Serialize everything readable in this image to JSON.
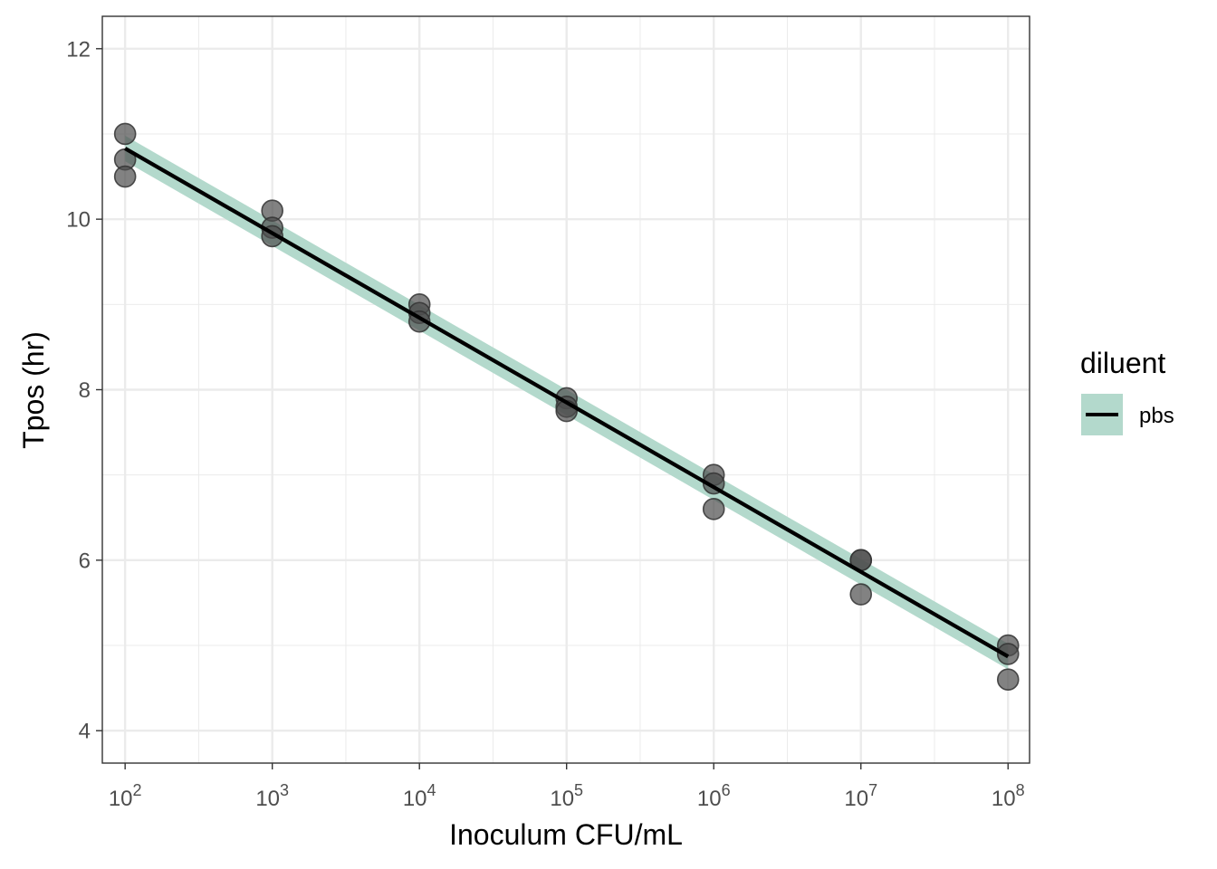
{
  "chart_data": {
    "type": "scatter",
    "xlabel": "Inoculum CFU/mL",
    "ylabel": "Tpos (hr)",
    "x_scale": "log10",
    "xlim": [
      70,
      140000000
    ],
    "ylim": [
      3.62,
      12.38
    ],
    "x_ticks": [
      {
        "value": 100,
        "base": "10",
        "exp": "2"
      },
      {
        "value": 1000,
        "base": "10",
        "exp": "3"
      },
      {
        "value": 10000,
        "base": "10",
        "exp": "4"
      },
      {
        "value": 100000,
        "base": "10",
        "exp": "5"
      },
      {
        "value": 1000000,
        "base": "10",
        "exp": "6"
      },
      {
        "value": 10000000,
        "base": "10",
        "exp": "7"
      },
      {
        "value": 100000000,
        "base": "10",
        "exp": "8"
      }
    ],
    "y_ticks": [
      {
        "value": 4,
        "label": "4"
      },
      {
        "value": 6,
        "label": "6"
      },
      {
        "value": 8,
        "label": "8"
      },
      {
        "value": 10,
        "label": "10"
      },
      {
        "value": 12,
        "label": "12"
      }
    ],
    "grid": true,
    "legend_position": "right",
    "legend_title": "diluent",
    "series": [
      {
        "name": "pbs",
        "points": [
          {
            "x": 100,
            "y": 11.0
          },
          {
            "x": 100,
            "y": 10.7
          },
          {
            "x": 100,
            "y": 10.5
          },
          {
            "x": 1000,
            "y": 10.1
          },
          {
            "x": 1000,
            "y": 9.9
          },
          {
            "x": 1000,
            "y": 9.8
          },
          {
            "x": 10000,
            "y": 9.0
          },
          {
            "x": 10000,
            "y": 8.9
          },
          {
            "x": 10000,
            "y": 8.8
          },
          {
            "x": 100000,
            "y": 7.9
          },
          {
            "x": 100000,
            "y": 7.8
          },
          {
            "x": 100000,
            "y": 7.75
          },
          {
            "x": 1000000,
            "y": 7.0
          },
          {
            "x": 1000000,
            "y": 6.9
          },
          {
            "x": 1000000,
            "y": 6.6
          },
          {
            "x": 10000000,
            "y": 6.0
          },
          {
            "x": 10000000,
            "y": 6.0
          },
          {
            "x": 10000000,
            "y": 5.6
          },
          {
            "x": 100000000,
            "y": 5.0
          },
          {
            "x": 100000000,
            "y": 4.9
          },
          {
            "x": 100000000,
            "y": 4.6
          }
        ],
        "fit": {
          "x": [
            100,
            100000000
          ],
          "y": [
            10.83,
            4.87
          ]
        },
        "ribbon": {
          "x": [
            100,
            100000000
          ],
          "upper": [
            10.98,
            5.02
          ],
          "lower": [
            10.68,
            4.72
          ]
        }
      }
    ],
    "colors": {
      "point_fill": "#4d4d4d",
      "point_stroke": "#333333",
      "fit_line": "#000000",
      "ribbon": "#b3d9cc",
      "grid": "#ebebeb",
      "panel_border": "#333333",
      "tick_text": "#4d4d4d"
    }
  }
}
